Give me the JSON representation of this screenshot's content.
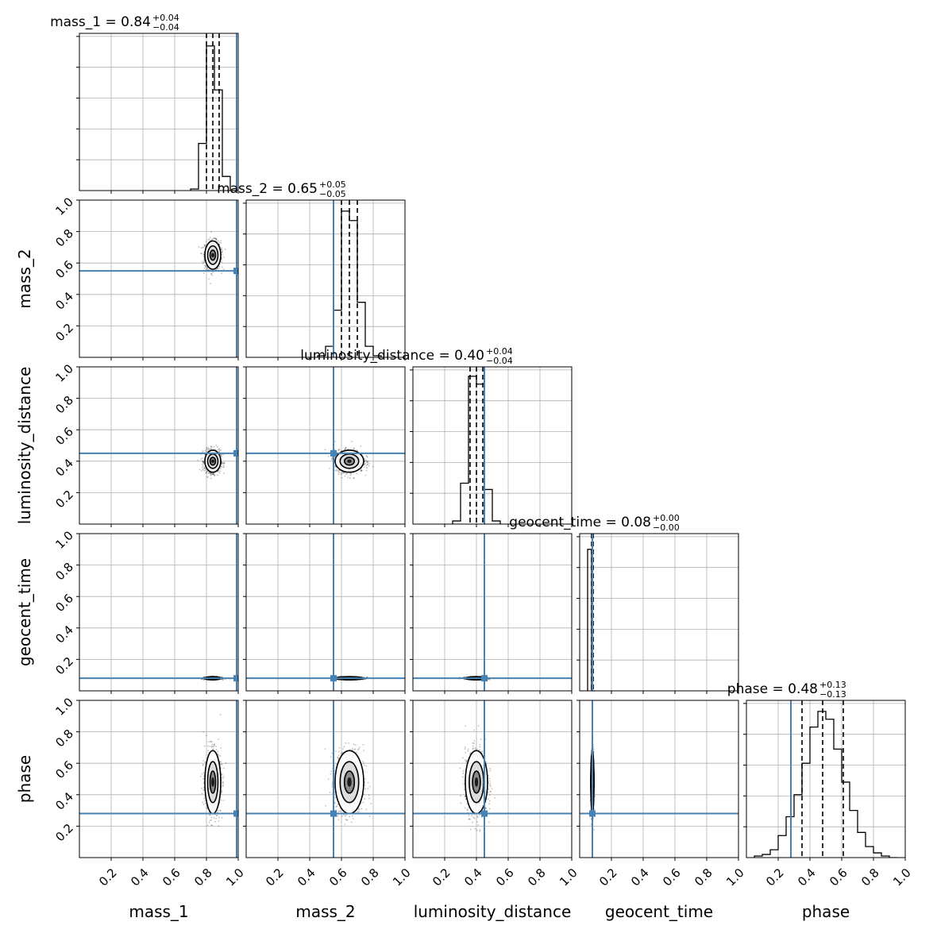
{
  "chart_data": {
    "type": "corner",
    "parameters": [
      "mass_1",
      "mass_2",
      "luminosity_distance",
      "geocent_time",
      "phase"
    ],
    "axis_range": [
      0,
      1
    ],
    "tick_labels": [
      "0.2",
      "0.4",
      "0.6",
      "0.8",
      "1.0"
    ],
    "tick_values": [
      0.2,
      0.4,
      0.6,
      0.8,
      1.0
    ],
    "grid": true,
    "injection_color": "#4682b4",
    "truths": [
      0.99,
      0.55,
      0.45,
      0.08,
      0.28
    ],
    "titles": [
      {
        "text": "mass_1 = 0.84",
        "plus": "+0.04",
        "minus": "−0.04"
      },
      {
        "text": "mass_2 = 0.65",
        "plus": "+0.05",
        "minus": "−0.05"
      },
      {
        "text": "luminosity_distance = 0.40",
        "plus": "+0.04",
        "minus": "−0.04"
      },
      {
        "text": "geocent_time = 0.08",
        "plus": "+0.00",
        "minus": "−0.00"
      },
      {
        "text": "phase = 0.48",
        "plus": "+0.13",
        "minus": "−0.13"
      }
    ],
    "quantiles": [
      [
        0.8,
        0.84,
        0.88
      ],
      [
        0.6,
        0.65,
        0.7
      ],
      [
        0.36,
        0.4,
        0.44
      ],
      [
        0.075,
        0.08,
        0.085
      ],
      [
        0.35,
        0.48,
        0.61
      ]
    ],
    "histograms": [
      {
        "edges": [
          0.7,
          0.75,
          0.8,
          0.85,
          0.9,
          0.95,
          1.0
        ],
        "counts": [
          0.01,
          0.3,
          0.92,
          0.64,
          0.09,
          0.0
        ]
      },
      {
        "edges": [
          0.45,
          0.5,
          0.55,
          0.6,
          0.65,
          0.7,
          0.75,
          0.8,
          0.85
        ],
        "counts": [
          0.01,
          0.07,
          0.3,
          0.93,
          0.87,
          0.35,
          0.07,
          0.01
        ]
      },
      {
        "edges": [
          0.25,
          0.3,
          0.35,
          0.4,
          0.45,
          0.5,
          0.55
        ],
        "counts": [
          0.02,
          0.26,
          0.94,
          0.89,
          0.22,
          0.02
        ]
      },
      {
        "edges": [
          0.05,
          0.075,
          0.1
        ],
        "counts": [
          0.9,
          0.0
        ]
      },
      {
        "edges": [
          0.05,
          0.1,
          0.15,
          0.2,
          0.25,
          0.3,
          0.35,
          0.4,
          0.45,
          0.5,
          0.55,
          0.6,
          0.65,
          0.7,
          0.75,
          0.8,
          0.85,
          0.9,
          0.95
        ],
        "counts": [
          0.01,
          0.02,
          0.05,
          0.14,
          0.26,
          0.4,
          0.6,
          0.83,
          0.93,
          0.88,
          0.69,
          0.48,
          0.3,
          0.16,
          0.07,
          0.03,
          0.01,
          0.0
        ]
      }
    ],
    "means": [
      0.84,
      0.65,
      0.4,
      0.08,
      0.48
    ],
    "sigmas": [
      0.025,
      0.045,
      0.035,
      0.004,
      0.1
    ]
  }
}
